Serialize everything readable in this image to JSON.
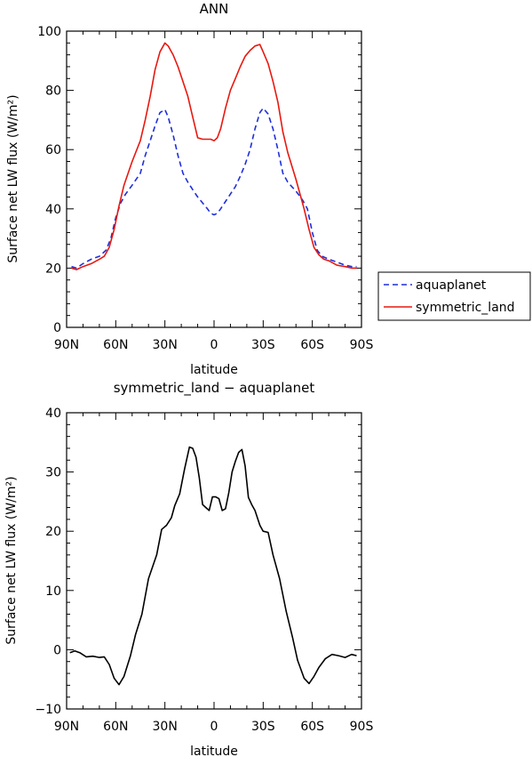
{
  "chart_data": [
    {
      "type": "line",
      "title": "ANN",
      "xlabel": "latitude",
      "ylabel": "Surface net LW flux (W/m²)",
      "xlim": [
        -90,
        90
      ],
      "ylim": [
        0,
        100
      ],
      "x_ticks": [
        -90,
        -60,
        -30,
        0,
        30,
        60,
        90
      ],
      "x_tick_labels": [
        "90N",
        "60N",
        "30N",
        "0",
        "30S",
        "60S",
        "90S"
      ],
      "y_ticks": [
        0,
        20,
        40,
        60,
        80,
        100
      ],
      "y_tick_labels": [
        "0",
        "20",
        "40",
        "60",
        "80",
        "100"
      ],
      "legend_position": "right",
      "series": [
        {
          "name": "aquaplanet",
          "color": "#1f2fd8",
          "dash": "dashed",
          "x": [
            -87,
            -84,
            -80,
            -75,
            -70,
            -66,
            -63,
            -60,
            -57,
            -54,
            -50,
            -45,
            -42,
            -39,
            -36,
            -33,
            -30,
            -28,
            -25,
            -22,
            -19,
            -16,
            -13,
            -10,
            -7,
            -4,
            -2,
            0,
            2,
            4,
            7,
            10,
            13,
            16,
            19,
            22,
            25,
            28,
            30,
            33,
            36,
            39,
            42,
            45,
            50,
            54,
            57,
            60,
            63,
            66,
            70,
            75,
            80,
            84,
            87
          ],
          "values": [
            20.5,
            20,
            21.5,
            23,
            24,
            26,
            30,
            37,
            42,
            45,
            48,
            52,
            58,
            63,
            68,
            72.5,
            73.5,
            71,
            65,
            58,
            52,
            49,
            46.5,
            44,
            42,
            40,
            38.5,
            38,
            38.5,
            40,
            42.5,
            45,
            47.5,
            51,
            55,
            60,
            67,
            72.5,
            74,
            72,
            67,
            60,
            52,
            49,
            46,
            43,
            40,
            32,
            26,
            24,
            23,
            22,
            21,
            20.5,
            20.5
          ]
        },
        {
          "name": "symmetric_land",
          "color": "#e8180f",
          "dash": "solid",
          "x": [
            -87,
            -84,
            -80,
            -75,
            -70,
            -67,
            -64,
            -61,
            -58,
            -55,
            -50,
            -45,
            -42,
            -39,
            -36,
            -33,
            -30,
            -28,
            -25,
            -22,
            -19,
            -16,
            -13,
            -10,
            -7,
            -4,
            -2,
            0,
            2,
            4,
            7,
            10,
            13,
            16,
            19,
            22,
            25,
            28,
            30,
            33,
            36,
            39,
            42,
            45,
            50,
            55,
            58,
            61,
            64,
            67,
            70,
            75,
            80,
            84,
            87
          ],
          "values": [
            20,
            19.5,
            20.5,
            21.5,
            23,
            24,
            27,
            33,
            41,
            48,
            56,
            63,
            70,
            78,
            87,
            93,
            96,
            95,
            92,
            88,
            83,
            78,
            71,
            64,
            63.5,
            63.5,
            63.5,
            63,
            64,
            67,
            74,
            80,
            84,
            88,
            91.5,
            93.5,
            95,
            95.5,
            93,
            89,
            83,
            76,
            66,
            59,
            50,
            40,
            33,
            27,
            24.5,
            23,
            22.5,
            21,
            20.5,
            20,
            20
          ]
        }
      ]
    },
    {
      "type": "line",
      "title": "symmetric_land − aquaplanet",
      "xlabel": "latitude",
      "ylabel": "Surface net LW flux (W/m²)",
      "xlim": [
        -90,
        90
      ],
      "ylim": [
        -10,
        40
      ],
      "x_ticks": [
        -90,
        -60,
        -30,
        0,
        30,
        60,
        90
      ],
      "x_tick_labels": [
        "90N",
        "60N",
        "30N",
        "0",
        "30S",
        "60S",
        "90S"
      ],
      "y_ticks": [
        -10,
        0,
        10,
        20,
        30,
        40
      ],
      "y_tick_labels": [
        "−10",
        "0",
        "10",
        "20",
        "30",
        "40"
      ],
      "series": [
        {
          "color": "#000000",
          "dash": "solid",
          "x": [
            -88,
            -85,
            -82,
            -78,
            -74,
            -70,
            -67,
            -64,
            -61,
            -58,
            -55,
            -51,
            -48,
            -44,
            -40,
            -35,
            -32,
            -29,
            -26,
            -24,
            -21,
            -18,
            -15,
            -13,
            -11,
            -9,
            -7,
            -5,
            -3,
            -1,
            1,
            3,
            5,
            7,
            9,
            11,
            13,
            15,
            17,
            19,
            21,
            23,
            25,
            28,
            30,
            33,
            36,
            40,
            44,
            48,
            51,
            55,
            58,
            61,
            64,
            68,
            72,
            76,
            80,
            84,
            87
          ],
          "values": [
            -0.5,
            -0.2,
            -0.5,
            -1.2,
            -1.1,
            -1.3,
            -1.2,
            -2.5,
            -4.8,
            -5.9,
            -4.5,
            -1,
            2.5,
            6,
            12,
            16,
            20.3,
            21,
            22.3,
            24.3,
            26.3,
            30.5,
            34.2,
            34,
            32.5,
            29,
            24.5,
            24,
            23.5,
            25.8,
            25.8,
            25.5,
            23.5,
            23.8,
            26.5,
            30,
            31.8,
            33.3,
            33.8,
            31,
            25.7,
            24.5,
            23.5,
            21,
            20,
            19.8,
            16,
            12,
            6.5,
            2,
            -1.8,
            -4.8,
            -5.7,
            -4.5,
            -3,
            -1.5,
            -0.8,
            -1,
            -1.3,
            -0.8,
            -1
          ]
        }
      ]
    }
  ]
}
